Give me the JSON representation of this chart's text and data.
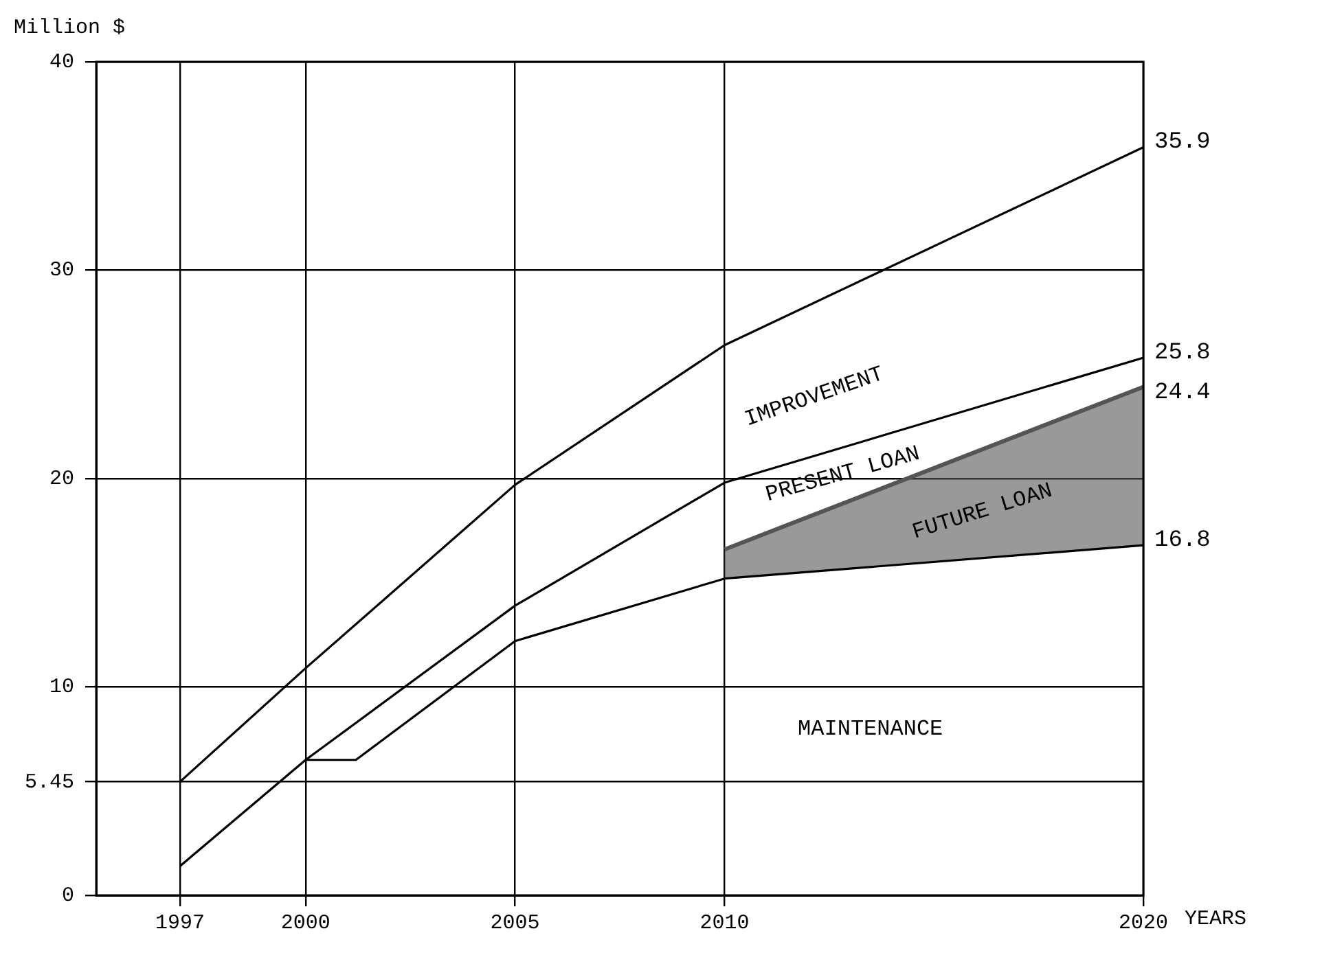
{
  "chart_data": {
    "type": "line",
    "ylabel": "Million $",
    "xlabel": "YEARS",
    "xlim": [
      1995,
      2020
    ],
    "xticks": [
      1997,
      2000,
      2005,
      2010,
      2020
    ],
    "ylim": [
      0,
      40
    ],
    "yticks": [
      0,
      5.45,
      10,
      20,
      30,
      40
    ],
    "grid": true,
    "legend": false,
    "marker": "none",
    "series": [
      {
        "color": "#000000",
        "x": [
          1997,
          2000,
          2005,
          2010,
          2020
        ],
        "values": [
          5.45,
          10.9,
          19.7,
          26.4,
          35.9
        ],
        "value_labels": [
          null,
          null,
          null,
          null,
          "35.9"
        ]
      },
      {
        "color": "#000000",
        "x": [
          1997,
          2000,
          2005,
          2010,
          2020
        ],
        "values": [
          1.4,
          6.5,
          13.9,
          19.8,
          25.8
        ],
        "value_labels": [
          null,
          null,
          null,
          null,
          "25.8"
        ]
      },
      {
        "color": "#000000",
        "x": [
          2000,
          2001.2,
          2005,
          2010,
          2020
        ],
        "values": [
          6.5,
          6.5,
          12.2,
          15.2,
          16.8
        ],
        "value_labels": [
          null,
          null,
          null,
          null,
          "16.8"
        ]
      },
      {
        "type": "area",
        "color": "#555555",
        "x": [
          2010,
          2020
        ],
        "values": [
          16.6,
          24.4
        ],
        "value_labels": [
          null,
          "24.4"
        ]
      }
    ],
    "annotations": [
      "IMPROVEMENT",
      "PRESENT LOAN",
      "FUTURE LOAN",
      "MAINTENANCE"
    ]
  }
}
